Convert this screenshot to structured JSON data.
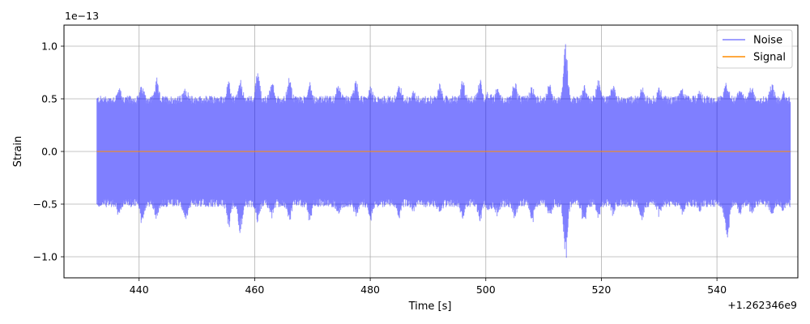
{
  "chart_data": {
    "type": "line",
    "title": "",
    "xlabel": "Time [s]",
    "ylabel": "Strain",
    "y_scale_label": "1e−13",
    "x_offset_label": "+1.262346e9",
    "xlim": [
      427,
      554
    ],
    "ylim": [
      -1.2,
      1.2
    ],
    "x_ticks": [
      440,
      460,
      480,
      500,
      520,
      540
    ],
    "x_tick_labels": [
      "440",
      "460",
      "480",
      "500",
      "520",
      "540"
    ],
    "y_ticks": [
      -1.0,
      -0.5,
      0.0,
      0.5,
      1.0
    ],
    "y_tick_labels": [
      "−1.0",
      "−0.5",
      "0.0",
      "0.5",
      "1.0"
    ],
    "grid": true,
    "legend_position": "top-right",
    "series": [
      {
        "name": "Noise",
        "color": "#0000ff",
        "opacity": 0.5,
        "x_range": [
          432.7,
          552.7
        ],
        "envelope_note": "dense noise, mostly within ±0.5 to ±0.65, with bursts",
        "peaks": [
          {
            "x": 436.5,
            "max": 0.62,
            "min": -0.62
          },
          {
            "x": 440.5,
            "max": 0.66,
            "min": -0.7
          },
          {
            "x": 443.0,
            "max": 0.7,
            "min": -0.65
          },
          {
            "x": 448.0,
            "max": 0.62,
            "min": -0.7
          },
          {
            "x": 455.5,
            "max": 0.67,
            "min": -0.75
          },
          {
            "x": 457.5,
            "max": 0.7,
            "min": -0.82
          },
          {
            "x": 460.5,
            "max": 0.81,
            "min": -0.68
          },
          {
            "x": 463.0,
            "max": 0.68,
            "min": -0.65
          },
          {
            "x": 466.0,
            "max": 0.73,
            "min": -0.7
          },
          {
            "x": 469.5,
            "max": 0.67,
            "min": -0.68
          },
          {
            "x": 474.5,
            "max": 0.68,
            "min": -0.62
          },
          {
            "x": 477.5,
            "max": 0.7,
            "min": -0.62
          },
          {
            "x": 480.0,
            "max": 0.62,
            "min": -0.68
          },
          {
            "x": 485.0,
            "max": 0.66,
            "min": -0.65
          },
          {
            "x": 487.5,
            "max": 0.58,
            "min": -0.58
          },
          {
            "x": 492.0,
            "max": 0.66,
            "min": -0.6
          },
          {
            "x": 496.0,
            "max": 0.7,
            "min": -0.67
          },
          {
            "x": 499.0,
            "max": 0.73,
            "min": -0.7
          },
          {
            "x": 500.5,
            "max": 0.58,
            "min": -0.6
          },
          {
            "x": 502.0,
            "max": 0.62,
            "min": -0.62
          },
          {
            "x": 505.0,
            "max": 0.7,
            "min": -0.66
          },
          {
            "x": 508.0,
            "max": 0.66,
            "min": -0.72
          },
          {
            "x": 511.0,
            "max": 0.66,
            "min": -0.67
          },
          {
            "x": 513.8,
            "max": 1.12,
            "min": -1.1
          },
          {
            "x": 517.0,
            "max": 0.66,
            "min": -0.72
          },
          {
            "x": 519.5,
            "max": 0.72,
            "min": -0.66
          },
          {
            "x": 522.0,
            "max": 0.67,
            "min": -0.62
          },
          {
            "x": 527.0,
            "max": 0.62,
            "min": -0.68
          },
          {
            "x": 530.0,
            "max": 0.65,
            "min": -0.63
          },
          {
            "x": 534.0,
            "max": 0.62,
            "min": -0.6
          },
          {
            "x": 537.0,
            "max": 0.6,
            "min": -0.58
          },
          {
            "x": 541.5,
            "max": 0.68,
            "min": -0.72
          },
          {
            "x": 541.8,
            "max": 0.64,
            "min": -0.88
          },
          {
            "x": 544.0,
            "max": 0.62,
            "min": -0.62
          },
          {
            "x": 546.0,
            "max": 0.66,
            "min": -0.6
          },
          {
            "x": 549.5,
            "max": 0.68,
            "min": -0.62
          },
          {
            "x": 551.5,
            "max": 0.6,
            "min": -0.58
          }
        ]
      },
      {
        "name": "Signal",
        "color": "#ff8c00",
        "opacity": 1,
        "x_range": [
          432.7,
          552.7
        ],
        "values_constant": 0.0
      }
    ]
  }
}
